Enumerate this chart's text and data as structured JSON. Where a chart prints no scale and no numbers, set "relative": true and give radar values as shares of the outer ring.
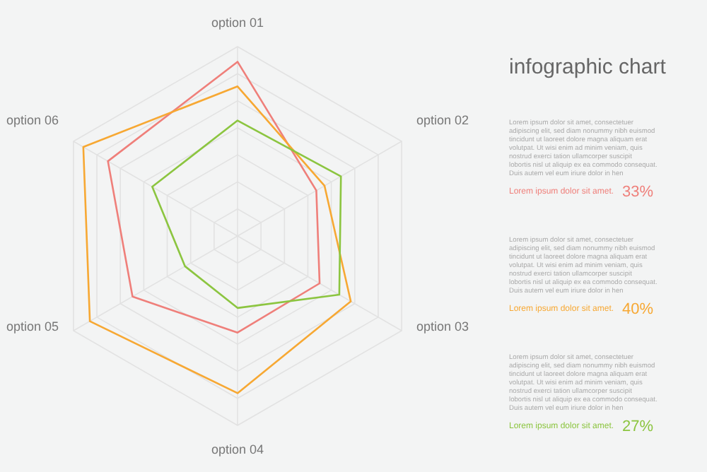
{
  "chart_data": {
    "type": "radar",
    "title": "infographic chart",
    "relative": true,
    "grid": true,
    "categories": [
      "option 01",
      "option 02",
      "option 03",
      "option 04",
      "option 05",
      "option 06"
    ],
    "series": [
      {
        "color": "#ef7f7a",
        "values": [
          0.92,
          0.48,
          0.5,
          0.51,
          0.64,
          0.79
        ]
      },
      {
        "color": "#f7a833",
        "values": [
          0.79,
          0.53,
          0.69,
          0.83,
          0.9,
          0.94
        ]
      },
      {
        "color": "#8cc540",
        "values": [
          0.61,
          0.63,
          0.62,
          0.38,
          0.32,
          0.52
        ]
      }
    ],
    "annotations": [
      "Lorem ipsum dolor sit amet, consectetuer adipiscing elit, sed diam nonummy nibh euismod tincidunt ut laoreet dolore magna aliquam erat volutpat. Ut wisi enim ad minim veniam, quis nostrud exerci tation ullamcorper suscipit lobortis nisl ut aliquip ex ea commodo consequat. Duis autem vel eum iriure dolor in hen",
      "Lorem ipsum dolor sit amet.",
      "33%",
      "Lorem ipsum dolor sit amet, consectetuer adipiscing elit, sed diam nonummy nibh euismod tincidunt ut laoreet dolore magna aliquam erat volutpat. Ut wisi enim ad minim veniam, quis nostrud exerci tation ullamcorper suscipit lobortis nisl ut aliquip ex ea commodo consequat. Duis autem vel eum iriure dolor in hen",
      "Lorem ipsum dolor sit amet.",
      "40%",
      "Lorem ipsum dolor sit amet, consectetuer adipiscing elit, sed diam nonummy nibh euismod tincidunt ut laoreet dolore magna aliquam erat volutpat. Ut wisi enim ad minim veniam, quis nostrud exerci tation ullamcorper suscipit lobortis nisl ut aliquip ex ea commodo consequat. Duis autem vel eum iriure dolor in hen",
      "Lorem ipsum dolor sit amet.",
      "27%"
    ]
  }
}
